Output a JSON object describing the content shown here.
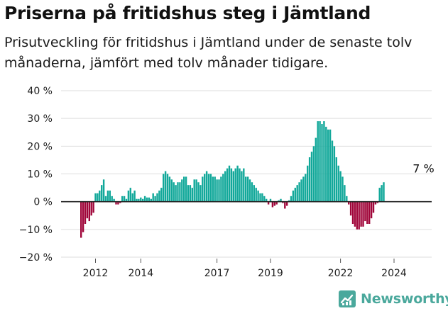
{
  "header": {
    "title": "Priserna på fritidshus steg i Jämtland",
    "subtitle": "Prisutveckling för fritidshus i Jämtland under de senaste tolv månaderna, jämfört med tolv månader tidigare."
  },
  "brand": {
    "name": "Newsworthy",
    "color": "#4aa89c",
    "icon": "newsworthy-logo-icon"
  },
  "colors": {
    "positive": "#12a89a",
    "negative": "#a0063a",
    "grid": "#dddddd",
    "axis": "#222222"
  },
  "chart_data": {
    "type": "bar",
    "ylim": [
      -20,
      40
    ],
    "yticks": [
      -20,
      -10,
      0,
      10,
      20,
      30,
      40
    ],
    "ytick_labels": [
      "−20 %",
      "−10 %",
      "0 %",
      "10 %",
      "20 %",
      "30 %",
      "40 %"
    ],
    "xtick_labels": [
      "2012",
      "2014",
      "2017",
      "2019",
      "2022",
      "2024"
    ],
    "xtick_index": [
      7,
      29,
      66,
      92,
      126,
      152
    ],
    "annotation": {
      "label": "7 %",
      "index": 167,
      "value": 7
    },
    "values": [
      -13,
      -11,
      -8,
      -6,
      -7,
      -5,
      -4,
      3,
      3,
      4,
      6,
      8,
      2,
      4,
      4,
      2,
      1,
      -1,
      -1,
      -0.5,
      2,
      2,
      1,
      4,
      5,
      3,
      4,
      1,
      1,
      1.5,
      1,
      2,
      1.5,
      1.5,
      1,
      3,
      2,
      3,
      4,
      5,
      10,
      11,
      10,
      9,
      8,
      7,
      6,
      7,
      7,
      8,
      9,
      9,
      6,
      6,
      5,
      8,
      8,
      7,
      6,
      9,
      10,
      11,
      10,
      10,
      9,
      9,
      8,
      8,
      9,
      10,
      11,
      12,
      13,
      12,
      11,
      12,
      13,
      12,
      11,
      12,
      9,
      9,
      8,
      7,
      6,
      5,
      4,
      3,
      3,
      2,
      1,
      -1,
      1,
      -2,
      -1.5,
      -1,
      0.5,
      1,
      -0.5,
      -2.5,
      -1.5,
      0.5,
      2,
      4,
      5,
      6,
      7,
      8,
      9,
      10,
      13,
      16,
      18,
      20,
      23,
      29,
      29,
      28,
      29,
      27,
      26,
      26,
      22,
      20,
      16,
      13,
      11,
      9,
      6,
      2,
      -1,
      -5,
      -8,
      -9,
      -10,
      -10,
      -9,
      -9,
      -7,
      -8,
      -8,
      -6,
      -4,
      -1,
      -0.5,
      5,
      6,
      7
    ]
  }
}
